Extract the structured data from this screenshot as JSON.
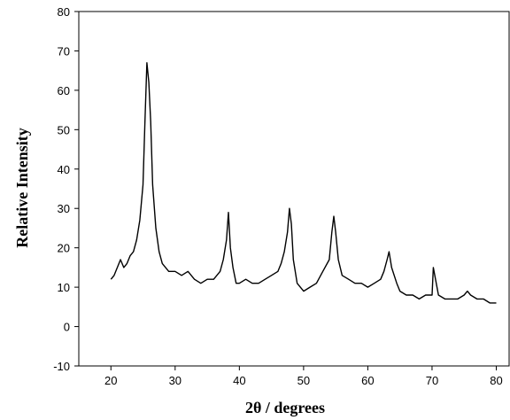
{
  "chart_data": {
    "type": "line",
    "title": "",
    "xlabel": "2θ / degrees",
    "ylabel": "Relative Intensity",
    "xlim": [
      15,
      82
    ],
    "ylim": [
      -10,
      80
    ],
    "xticks": [
      20,
      30,
      40,
      50,
      60,
      70,
      80
    ],
    "yticks": [
      -10,
      0,
      10,
      20,
      30,
      40,
      50,
      60,
      70,
      80
    ],
    "grid": false,
    "legend": "none",
    "line_color": "#000000",
    "series": [
      {
        "x": [
          20,
          20.5,
          21,
          21.5,
          22,
          22.5,
          23,
          23.5,
          24,
          24.5,
          25,
          25.3,
          25.6,
          25.9,
          26.2,
          26.5,
          27,
          27.5,
          28,
          29,
          30,
          31,
          32,
          33,
          34,
          35,
          36,
          37,
          37.5,
          38,
          38.3,
          38.6,
          39,
          39.5,
          40,
          41,
          42,
          43,
          44,
          45,
          46,
          46.5,
          47,
          47.5,
          47.8,
          48.1,
          48.4,
          49,
          50,
          51,
          52,
          53,
          54,
          54.4,
          54.7,
          55,
          55.4,
          56,
          57,
          58,
          59,
          60,
          61,
          62,
          62.5,
          63,
          63.3,
          63.7,
          64.5,
          65,
          66,
          67,
          68,
          69,
          70,
          70.2,
          71,
          72,
          73,
          74,
          75,
          75.5,
          76,
          77,
          78,
          79,
          80
        ],
        "y": [
          12,
          13,
          15,
          17,
          15,
          16,
          18,
          19,
          22,
          27,
          36,
          52,
          67,
          62,
          52,
          36,
          25,
          19,
          16,
          14,
          14,
          13,
          14,
          12,
          11,
          12,
          12,
          14,
          17,
          22,
          29,
          20,
          15,
          11,
          11,
          12,
          11,
          11,
          12,
          13,
          14,
          16,
          19,
          24,
          30,
          26,
          17,
          11,
          9,
          10,
          11,
          14,
          17,
          24,
          28,
          24,
          17,
          13,
          12,
          11,
          11,
          10,
          11,
          12,
          14,
          17,
          19,
          15,
          11,
          9,
          8,
          8,
          7,
          8,
          8,
          15,
          8,
          7,
          7,
          7,
          8,
          9,
          8,
          7,
          7,
          6,
          6
        ]
      }
    ]
  }
}
